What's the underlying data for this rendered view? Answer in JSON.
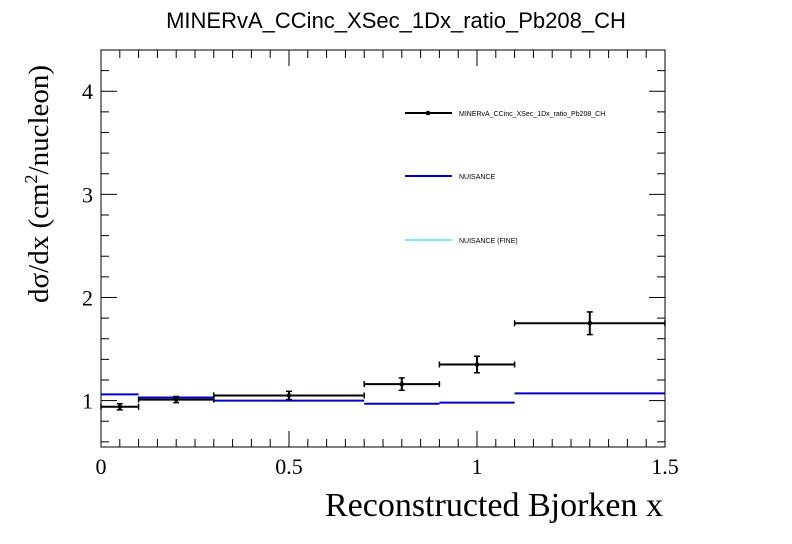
{
  "chart_data": {
    "type": "line",
    "title": "MINERvA_CCinc_XSec_1Dx_ratio_Pb208_CH",
    "xlabel": "Reconstructed Bjorken x",
    "ylabel_main": "dσ/dx (cm",
    "ylabel_sup": "2",
    "ylabel_tail": "/nucleon)",
    "xlim": [
      0,
      1.5
    ],
    "ylim": [
      0.55,
      4.4
    ],
    "x_ticks": [
      0,
      0.5,
      1,
      1.5
    ],
    "x_tick_labels": [
      "0",
      "0.5",
      "1",
      "1.5"
    ],
    "y_ticks": [
      1,
      2,
      3,
      4
    ],
    "y_tick_labels": [
      "1",
      "2",
      "3",
      "4"
    ],
    "legend": {
      "placement": "top-right",
      "entries": [
        {
          "label": "MINERvA_CCinc_XSec_1Dx_ratio_Pb208_CH",
          "color": "#000000",
          "style": "marker-line"
        },
        {
          "label": "NUISANCE",
          "color": "#0000cc",
          "style": "line"
        },
        {
          "label": "NUISANCE (FINE)",
          "color": "#00cccc",
          "style": "line"
        }
      ]
    },
    "series": [
      {
        "kind": "data",
        "color": "#000000",
        "points": [
          {
            "x": 0.05,
            "xlo": 0.0,
            "xhi": 0.1,
            "y": 0.94,
            "err": 0.03
          },
          {
            "x": 0.2,
            "xlo": 0.1,
            "xhi": 0.3,
            "y": 1.01,
            "err": 0.03
          },
          {
            "x": 0.5,
            "xlo": 0.3,
            "xhi": 0.7,
            "y": 1.05,
            "err": 0.04
          },
          {
            "x": 0.8,
            "xlo": 0.7,
            "xhi": 0.9,
            "y": 1.16,
            "err": 0.06
          },
          {
            "x": 1.0,
            "xlo": 0.9,
            "xhi": 1.1,
            "y": 1.35,
            "err": 0.08
          },
          {
            "x": 1.3,
            "xlo": 1.1,
            "xhi": 1.5,
            "y": 1.75,
            "err": 0.11
          }
        ]
      },
      {
        "kind": "mc",
        "color": "#0000cc",
        "bins": [
          {
            "xlo": 0.0,
            "xhi": 0.1,
            "y": 1.06
          },
          {
            "xlo": 0.1,
            "xhi": 0.3,
            "y": 1.03
          },
          {
            "xlo": 0.3,
            "xhi": 0.7,
            "y": 1.0
          },
          {
            "xlo": 0.7,
            "xhi": 0.9,
            "y": 0.97
          },
          {
            "xlo": 0.9,
            "xhi": 1.1,
            "y": 0.98
          },
          {
            "xlo": 1.1,
            "xhi": 1.5,
            "y": 1.07
          }
        ]
      }
    ]
  }
}
